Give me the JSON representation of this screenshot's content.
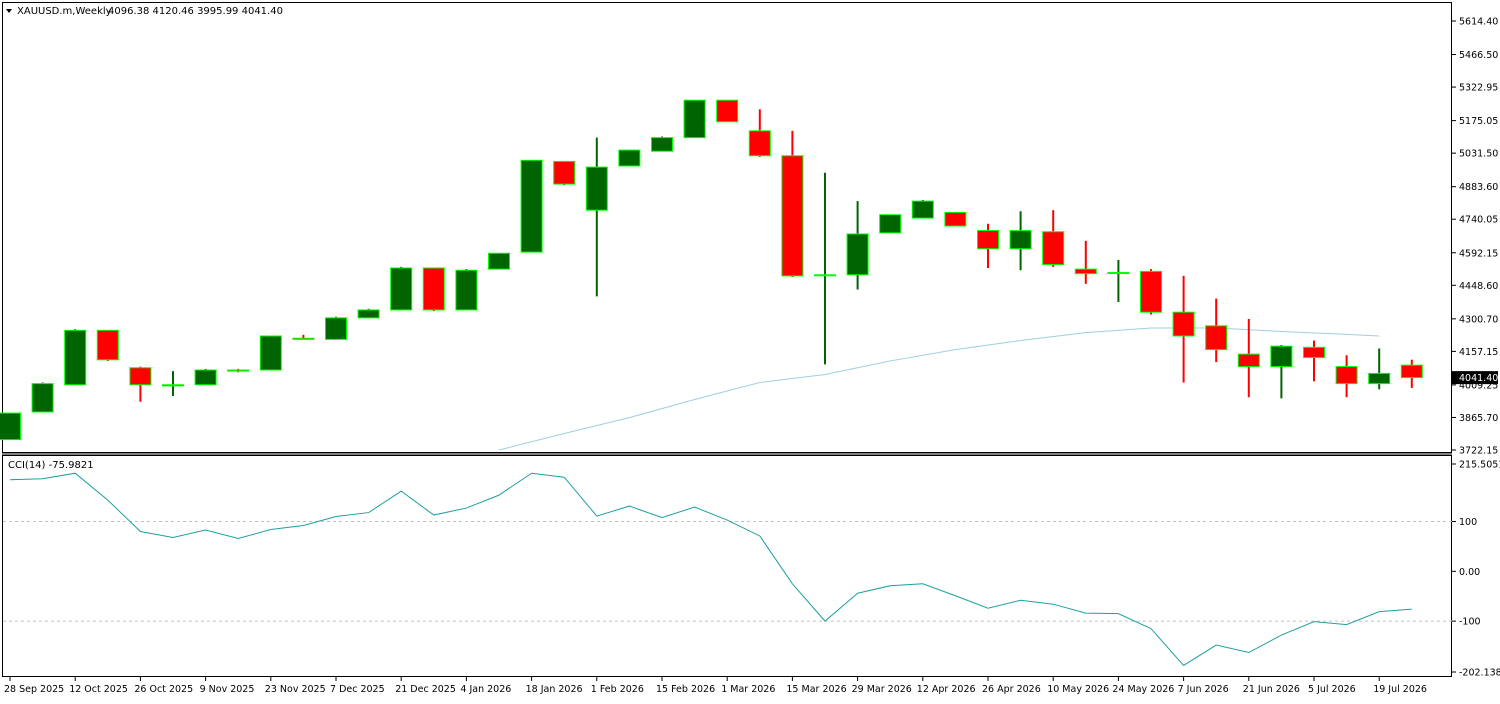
{
  "main_header": {
    "symbol": "XAUUSD.m,Weekly",
    "ohlc": "4096.38 4120.46 3995.99 4041.40"
  },
  "price_tag": "4041.40",
  "cci_header": "CCI(14) -75.9821",
  "colors": {
    "bull_body": "#006400",
    "bear_body": "#ff0000",
    "candle_outline": "#00ff00",
    "ma_line": "#9fcfdf",
    "cci_line": "#1e9fa0",
    "price_tag_bg": "#000000"
  },
  "chart_data": [
    {
      "type": "candlestick",
      "ylim": [
        3722.15,
        5614.4
      ],
      "y_ticks": [
        "5614.40",
        "5466.50",
        "5322.95",
        "5175.05",
        "5031.50",
        "4883.60",
        "4740.05",
        "4592.15",
        "4448.60",
        "4300.70",
        "4157.15",
        "4009.25",
        "3865.70",
        "3722.15"
      ],
      "x_labels": [
        "28 Sep 2025",
        "12 Oct 2025",
        "26 Oct 2025",
        "9 Nov 2025",
        "23 Nov 2025",
        "7 Dec 2025",
        "21 Dec 2025",
        "4 Jan 2026",
        "18 Jan 2026",
        "1 Feb 2026",
        "15 Feb 2026",
        "1 Mar 2026",
        "15 Mar 2026",
        "29 Mar 2026",
        "12 Apr 2026",
        "26 Apr 2026",
        "10 May 2026",
        "24 May 2026",
        "7 Jun 2026",
        "21 Jun 2026",
        "5 Jul 2026",
        "19 Jul 2026"
      ],
      "candles": [
        {
          "o": 3768,
          "h": 3885,
          "l": 3768,
          "c": 3885
        },
        {
          "o": 3890,
          "h": 4020,
          "l": 3890,
          "c": 4015
        },
        {
          "o": 4010,
          "h": 4255,
          "l": 4010,
          "c": 4250
        },
        {
          "o": 4250,
          "h": 4250,
          "l": 4115,
          "c": 4120
        },
        {
          "o": 4085,
          "h": 4090,
          "l": 3935,
          "c": 4010
        },
        {
          "o": 4005,
          "h": 4070,
          "l": 3960,
          "c": 4010
        },
        {
          "o": 4010,
          "h": 4080,
          "l": 4010,
          "c": 4075
        },
        {
          "o": 4075,
          "h": 4080,
          "l": 4065,
          "c": 4070
        },
        {
          "o": 4075,
          "h": 4225,
          "l": 4075,
          "c": 4225
        },
        {
          "o": 4215,
          "h": 4230,
          "l": 4210,
          "c": 4210
        },
        {
          "o": 4210,
          "h": 4310,
          "l": 4210,
          "c": 4305
        },
        {
          "o": 4305,
          "h": 4345,
          "l": 4305,
          "c": 4340
        },
        {
          "o": 4340,
          "h": 4530,
          "l": 4340,
          "c": 4525
        },
        {
          "o": 4525,
          "h": 4525,
          "l": 4335,
          "c": 4340
        },
        {
          "o": 4340,
          "h": 4520,
          "l": 4340,
          "c": 4515
        },
        {
          "o": 4520,
          "h": 4590,
          "l": 4520,
          "c": 4590
        },
        {
          "o": 4595,
          "h": 5000,
          "l": 4595,
          "c": 5000
        },
        {
          "o": 4995,
          "h": 4995,
          "l": 4890,
          "c": 4895
        },
        {
          "o": 4780,
          "h": 5100,
          "l": 4400,
          "c": 4970
        },
        {
          "o": 4975,
          "h": 5045,
          "l": 4975,
          "c": 5045
        },
        {
          "o": 5040,
          "h": 5105,
          "l": 5040,
          "c": 5100
        },
        {
          "o": 5100,
          "h": 5265,
          "l": 5100,
          "c": 5265
        },
        {
          "o": 5265,
          "h": 5265,
          "l": 5170,
          "c": 5170
        },
        {
          "o": 5130,
          "h": 5225,
          "l": 5015,
          "c": 5020
        },
        {
          "o": 5020,
          "h": 5130,
          "l": 4485,
          "c": 4490
        },
        {
          "o": 4495,
          "h": 4945,
          "l": 4100,
          "c": 4495
        },
        {
          "o": 4495,
          "h": 4820,
          "l": 4430,
          "c": 4675
        },
        {
          "o": 4680,
          "h": 4760,
          "l": 4680,
          "c": 4760
        },
        {
          "o": 4745,
          "h": 4825,
          "l": 4745,
          "c": 4820
        },
        {
          "o": 4770,
          "h": 4770,
          "l": 4710,
          "c": 4710
        },
        {
          "o": 4690,
          "h": 4720,
          "l": 4525,
          "c": 4610
        },
        {
          "o": 4610,
          "h": 4775,
          "l": 4515,
          "c": 4690
        },
        {
          "o": 4685,
          "h": 4780,
          "l": 4530,
          "c": 4540
        },
        {
          "o": 4520,
          "h": 4645,
          "l": 4455,
          "c": 4500
        },
        {
          "o": 4505,
          "h": 4560,
          "l": 4375,
          "c": 4505
        },
        {
          "o": 4510,
          "h": 4520,
          "l": 4320,
          "c": 4330
        },
        {
          "o": 4330,
          "h": 4490,
          "l": 4020,
          "c": 4225
        },
        {
          "o": 4270,
          "h": 4390,
          "l": 4110,
          "c": 4165
        },
        {
          "o": 4145,
          "h": 4300,
          "l": 3955,
          "c": 4090
        },
        {
          "o": 4090,
          "h": 4185,
          "l": 3950,
          "c": 4180
        },
        {
          "o": 4175,
          "h": 4205,
          "l": 4025,
          "c": 4130
        },
        {
          "o": 4090,
          "h": 4140,
          "l": 3955,
          "c": 4015
        },
        {
          "o": 4015,
          "h": 4170,
          "l": 3990,
          "c": 4060
        },
        {
          "o": 4096.38,
          "h": 4120.46,
          "l": 3995.99,
          "c": 4041.4
        }
      ],
      "ma": [
        {
          "i": 15,
          "v": 3722
        },
        {
          "i": 17,
          "v": 3795
        },
        {
          "i": 19,
          "v": 3865
        },
        {
          "i": 21,
          "v": 3945
        },
        {
          "i": 23,
          "v": 4020
        },
        {
          "i": 25,
          "v": 4055
        },
        {
          "i": 27,
          "v": 4115
        },
        {
          "i": 29,
          "v": 4165
        },
        {
          "i": 31,
          "v": 4205
        },
        {
          "i": 33,
          "v": 4240
        },
        {
          "i": 35,
          "v": 4260
        },
        {
          "i": 37,
          "v": 4260
        },
        {
          "i": 39,
          "v": 4245
        },
        {
          "i": 41,
          "v": 4232
        },
        {
          "i": 42,
          "v": 4225
        }
      ]
    },
    {
      "type": "line",
      "name": "CCI(14) -75.9821",
      "ylim": [
        -202.1387,
        215.5051
      ],
      "y_ticks": [
        "215.5051",
        "100",
        "0.00",
        "-100",
        "-202.1387"
      ],
      "levels": [
        100,
        -100
      ],
      "values": [
        184,
        186,
        197,
        143,
        80,
        68,
        83,
        66,
        84,
        92,
        110,
        118,
        161,
        113,
        127,
        153,
        197,
        189,
        111,
        131,
        108,
        129,
        103,
        71,
        -25,
        -100,
        -44,
        -29,
        -25,
        -49,
        -74,
        -58,
        -66,
        -84,
        -85,
        -115,
        -189,
        -148,
        -163,
        -128,
        -101,
        -107,
        -81,
        -75.98
      ]
    }
  ]
}
